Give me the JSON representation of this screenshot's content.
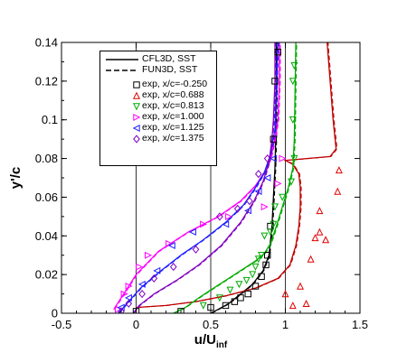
{
  "chart_data": {
    "type": "line",
    "xlabel_main": "u/U",
    "xlabel_sub": "inf",
    "ylabel": "y'/c",
    "xlim": [
      -0.5,
      1.5
    ],
    "ylim": [
      0,
      0.14
    ],
    "xticks": [
      "-0.5",
      "0",
      "0.5",
      "1",
      "1.5"
    ],
    "yticks": [
      "0",
      "0.02",
      "0.04",
      "0.06",
      "0.08",
      "0.1",
      "0.12",
      "0.14"
    ],
    "grid": "x-only",
    "legend_position": "top-left",
    "legend": {
      "lines": [
        {
          "label": "CFL3D, SST",
          "style": "solid"
        },
        {
          "label": "FUN3D, SST",
          "style": "dashed"
        }
      ],
      "markers": [
        {
          "label": "exp, x/c=-0.250",
          "marker": "square",
          "color": "#000000"
        },
        {
          "label": "exp, x/c=0.688",
          "marker": "triangle-up",
          "color": "#e00000"
        },
        {
          "label": "exp, x/c=0.813",
          "marker": "triangle-down",
          "color": "#00aa00"
        },
        {
          "label": "exp, x/c=1.000",
          "marker": "triangle-right",
          "color": "#ff00ff"
        },
        {
          "label": "exp, x/c=1.125",
          "marker": "triangle-left",
          "color": "#2020ff"
        },
        {
          "label": "exp, x/c=1.375",
          "marker": "diamond",
          "color": "#8000c0"
        }
      ]
    },
    "series": [
      {
        "color": "#000000",
        "x": [
          0.5,
          0.55,
          0.62,
          0.7,
          0.78,
          0.85,
          0.89,
          0.91,
          0.92,
          0.93,
          0.935,
          0.94,
          0.94
        ],
        "y": [
          0,
          0.002,
          0.005,
          0.01,
          0.015,
          0.022,
          0.03,
          0.045,
          0.06,
          0.075,
          0.09,
          0.12,
          0.14
        ]
      },
      {
        "color": "#c00000",
        "x": [
          0.0,
          0.2,
          0.4,
          0.6,
          0.8,
          0.95,
          1.03,
          1.07,
          1.09,
          1.1,
          1.1,
          1.09,
          1.05,
          1.0,
          1.3,
          1.34,
          1.32,
          1.3,
          1.28
        ],
        "y": [
          0.003,
          0.004,
          0.006,
          0.009,
          0.013,
          0.018,
          0.025,
          0.035,
          0.045,
          0.055,
          0.065,
          0.072,
          0.077,
          0.079,
          0.081,
          0.085,
          0.1,
          0.12,
          0.14
        ]
      },
      {
        "color": "#00aa00",
        "x": [
          0.25,
          0.33,
          0.42,
          0.52,
          0.62,
          0.72,
          0.8,
          0.86,
          0.9,
          0.94,
          0.98,
          1.02,
          1.05,
          1.06,
          1.07
        ],
        "y": [
          0.0,
          0.003,
          0.008,
          0.013,
          0.018,
          0.023,
          0.027,
          0.031,
          0.036,
          0.045,
          0.055,
          0.065,
          0.075,
          0.09,
          0.14
        ]
      },
      {
        "color": "#ff00ff",
        "x": [
          -0.15,
          -0.1,
          0.0,
          0.15,
          0.35,
          0.55,
          0.7,
          0.8,
          0.86,
          0.9,
          0.93,
          0.95,
          0.96,
          0.96
        ],
        "y": [
          0.002,
          0.008,
          0.02,
          0.032,
          0.042,
          0.05,
          0.058,
          0.066,
          0.073,
          0.08,
          0.09,
          0.1,
          0.12,
          0.14
        ]
      },
      {
        "color": "#2020ff",
        "x": [
          -0.12,
          -0.05,
          0.03,
          0.15,
          0.3,
          0.45,
          0.6,
          0.72,
          0.8,
          0.86,
          0.9,
          0.93,
          0.94,
          0.95
        ],
        "y": [
          0.0,
          0.006,
          0.013,
          0.021,
          0.03,
          0.038,
          0.047,
          0.056,
          0.065,
          0.073,
          0.082,
          0.095,
          0.12,
          0.14
        ]
      },
      {
        "color": "#8000c0",
        "x": [
          -0.02,
          0.02,
          0.12,
          0.27,
          0.42,
          0.57,
          0.7,
          0.79,
          0.85,
          0.89,
          0.91,
          0.92,
          0.93,
          0.93
        ],
        "y": [
          0.0,
          0.004,
          0.01,
          0.017,
          0.025,
          0.035,
          0.047,
          0.058,
          0.068,
          0.078,
          0.09,
          0.1,
          0.12,
          0.14
        ]
      }
    ],
    "exp_points": [
      {
        "marker": "square",
        "color": "#000000",
        "x": [
          0.0,
          0.3,
          0.5,
          0.6,
          0.66,
          0.7,
          0.75,
          0.8,
          0.84,
          0.87,
          0.88,
          0.9,
          0.92,
          0.93,
          0.95
        ],
        "y": [
          0.001,
          0.001,
          0.003,
          0.004,
          0.006,
          0.008,
          0.01,
          0.014,
          0.019,
          0.025,
          0.03,
          0.045,
          0.09,
          0.12,
          0.135
        ]
      },
      {
        "marker": "triangle-up",
        "color": "#e00000",
        "x": [
          1.0,
          1.05,
          1.1,
          1.14,
          1.17,
          1.2,
          1.23,
          1.23,
          1.27,
          1.35,
          1.36
        ],
        "y": [
          0.01,
          0.004,
          0.014,
          0.005,
          0.028,
          0.039,
          0.042,
          0.053,
          0.038,
          0.063,
          0.074
        ]
      },
      {
        "marker": "triangle-down",
        "color": "#00aa00",
        "x": [
          0.45,
          0.56,
          0.63,
          0.69,
          0.74,
          0.78,
          0.8,
          0.82,
          0.84,
          0.86,
          0.9,
          0.92,
          0.93,
          0.98,
          1.04,
          1.06,
          1.05,
          1.05,
          1.06
        ],
        "y": [
          0.004,
          0.008,
          0.012,
          0.015,
          0.017,
          0.02,
          0.024,
          0.028,
          0.03,
          0.04,
          0.042,
          0.046,
          0.055,
          0.06,
          0.068,
          0.08,
          0.1,
          0.12,
          0.128
        ]
      },
      {
        "marker": "triangle-right",
        "color": "#ff00ff",
        "x": [
          -0.12,
          -0.08,
          -0.05,
          0.02,
          0.08,
          0.22,
          0.45,
          0.62,
          0.86,
          0.95,
          0.98
        ],
        "y": [
          0.002,
          0.01,
          0.014,
          0.024,
          0.03,
          0.036,
          0.046,
          0.05,
          0.055,
          0.067,
          0.08
        ]
      },
      {
        "marker": "triangle-left",
        "color": "#2020ff",
        "x": [
          -0.1,
          -0.05,
          0.04,
          0.14,
          0.24,
          0.38,
          0.6,
          0.75,
          0.82,
          0.88,
          0.92
        ],
        "y": [
          0.003,
          0.008,
          0.015,
          0.022,
          0.035,
          0.042,
          0.046,
          0.053,
          0.063,
          0.07,
          0.08
        ]
      },
      {
        "marker": "diamond",
        "color": "#8000c0",
        "x": [
          -0.1,
          -0.05,
          0.04,
          0.12,
          0.25,
          0.4,
          0.56,
          0.68,
          0.76,
          0.82,
          0.88
        ],
        "y": [
          0.001,
          0.005,
          0.01,
          0.018,
          0.024,
          0.033,
          0.05,
          0.054,
          0.058,
          0.072,
          0.08
        ]
      }
    ]
  }
}
